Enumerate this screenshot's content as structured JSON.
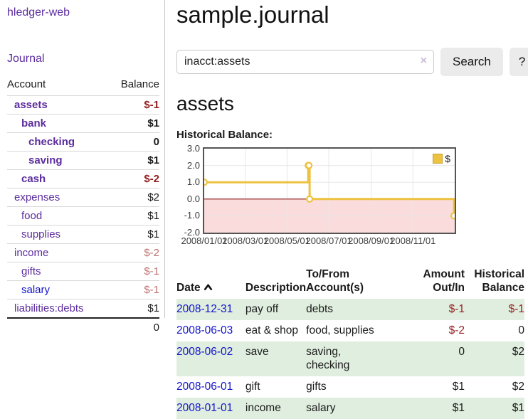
{
  "colors": {
    "link_purple": "#5b2d9e",
    "link_blue": "#1414cc",
    "negative_strong": "#941f1f",
    "negative_soft": "#bf7272",
    "row_stripe_green": "#dfeede",
    "chart_line": "#edc240",
    "chart_negative_region": "#fbdcdc",
    "chart_zero_line": "#8c1717",
    "button_gray": "#ebebeb"
  },
  "sidebar": {
    "app_title": "hledger-web",
    "journal_link": "Journal",
    "accounts_table": {
      "headers": {
        "account": "Account",
        "balance": "Balance"
      },
      "rows": [
        {
          "name": "assets",
          "indent": 0,
          "bold": true,
          "balance": "$-1",
          "balance_negative": "strong"
        },
        {
          "name": "bank",
          "indent": 1,
          "bold": true,
          "balance": "$1"
        },
        {
          "name": "checking",
          "indent": 2,
          "bold": true,
          "balance": "0"
        },
        {
          "name": "saving",
          "indent": 2,
          "bold": true,
          "balance": "$1"
        },
        {
          "name": "cash",
          "indent": 1,
          "bold": true,
          "balance": "$-2",
          "balance_negative": "strong"
        },
        {
          "name": "expenses",
          "indent": 0,
          "bold": false,
          "balance": "$2"
        },
        {
          "name": "food",
          "indent": 1,
          "bold": false,
          "balance": "$1"
        },
        {
          "name": "supplies",
          "indent": 1,
          "bold": false,
          "balance": "$1"
        },
        {
          "name": "income",
          "indent": 0,
          "bold": false,
          "balance": "$-2",
          "balance_negative": "soft"
        },
        {
          "name": "gifts",
          "indent": 1,
          "bold": false,
          "balance": "$-1",
          "balance_negative": "soft"
        },
        {
          "name": "salary",
          "indent": 1,
          "bold": false,
          "balance": "$-1",
          "balance_negative": "soft",
          "link_style": "blue"
        },
        {
          "name": "liabilities:debts",
          "indent": 0,
          "bold": false,
          "balance": "$1"
        }
      ],
      "total": "0"
    }
  },
  "main": {
    "title": "sample.journal",
    "search": {
      "value": "inacct:assets",
      "clear_icon": "×",
      "button_label": "Search",
      "help_label": "?"
    },
    "account_heading": "assets",
    "chart_heading": "Historical Balance:",
    "register_table": {
      "headers": {
        "date": "Date",
        "sort": "ascending",
        "description": "Description",
        "tofrom_line1": "To/From",
        "tofrom_line2": "Account(s)",
        "amount_line1": "Amount",
        "amount_line2": "Out/In",
        "balance_line1": "Historical",
        "balance_line2": "Balance"
      },
      "rows": [
        {
          "date": "2008-12-31",
          "description": "pay off",
          "accounts": "debts",
          "amount": "$-1",
          "amount_negative": true,
          "balance": "$-1",
          "balance_negative": true
        },
        {
          "date": "2008-06-03",
          "description": "eat & shop",
          "accounts": "food, supplies",
          "amount": "$-2",
          "amount_negative": true,
          "balance": "0",
          "balance_negative": false
        },
        {
          "date": "2008-06-02",
          "description": "save",
          "accounts": "saving, checking",
          "amount": "0",
          "amount_negative": false,
          "balance": "$2",
          "balance_negative": false
        },
        {
          "date": "2008-06-01",
          "description": "gift",
          "accounts": "gifts",
          "amount": "$1",
          "amount_negative": false,
          "balance": "$2",
          "balance_negative": false
        },
        {
          "date": "2008-01-01",
          "description": "income",
          "accounts": "salary",
          "amount": "$1",
          "amount_negative": false,
          "balance": "$1",
          "balance_negative": false
        }
      ]
    }
  },
  "chart_data": {
    "type": "line",
    "title": "Historical Balance",
    "step": true,
    "grid": true,
    "legend_position": "top-right",
    "x_range": [
      "2008-01-01",
      "2009-01-01"
    ],
    "ylim": [
      -2,
      3
    ],
    "y_ticks": [
      {
        "value": 3,
        "label": "3.0"
      },
      {
        "value": 2,
        "label": "2.0"
      },
      {
        "value": 1,
        "label": "1.0"
      },
      {
        "value": 0,
        "label": "0.0"
      },
      {
        "value": -1,
        "label": "-1.0"
      },
      {
        "value": -2,
        "label": "-2.0"
      }
    ],
    "x_ticks": [
      {
        "date": "2008-01-01",
        "label": "2008/01/01"
      },
      {
        "date": "2008-03-01",
        "label": "2008/03/01"
      },
      {
        "date": "2008-05-01",
        "label": "2008/05/01"
      },
      {
        "date": "2008-07-01",
        "label": "2008/07/01"
      },
      {
        "date": "2008-09-01",
        "label": "2008/09/01"
      },
      {
        "date": "2008-11-01",
        "label": "2008/11/01"
      }
    ],
    "series": [
      {
        "name": "$",
        "color": "#edc240",
        "points": [
          {
            "date": "2008-01-01",
            "value": 1
          },
          {
            "date": "2008-06-01",
            "value": 2
          },
          {
            "date": "2008-06-02",
            "value": 2
          },
          {
            "date": "2008-06-03",
            "value": 0
          },
          {
            "date": "2008-12-31",
            "value": -1
          }
        ]
      }
    ],
    "negative_region_color": "#fbdcdc",
    "zero_line_color": "#8c1717"
  }
}
